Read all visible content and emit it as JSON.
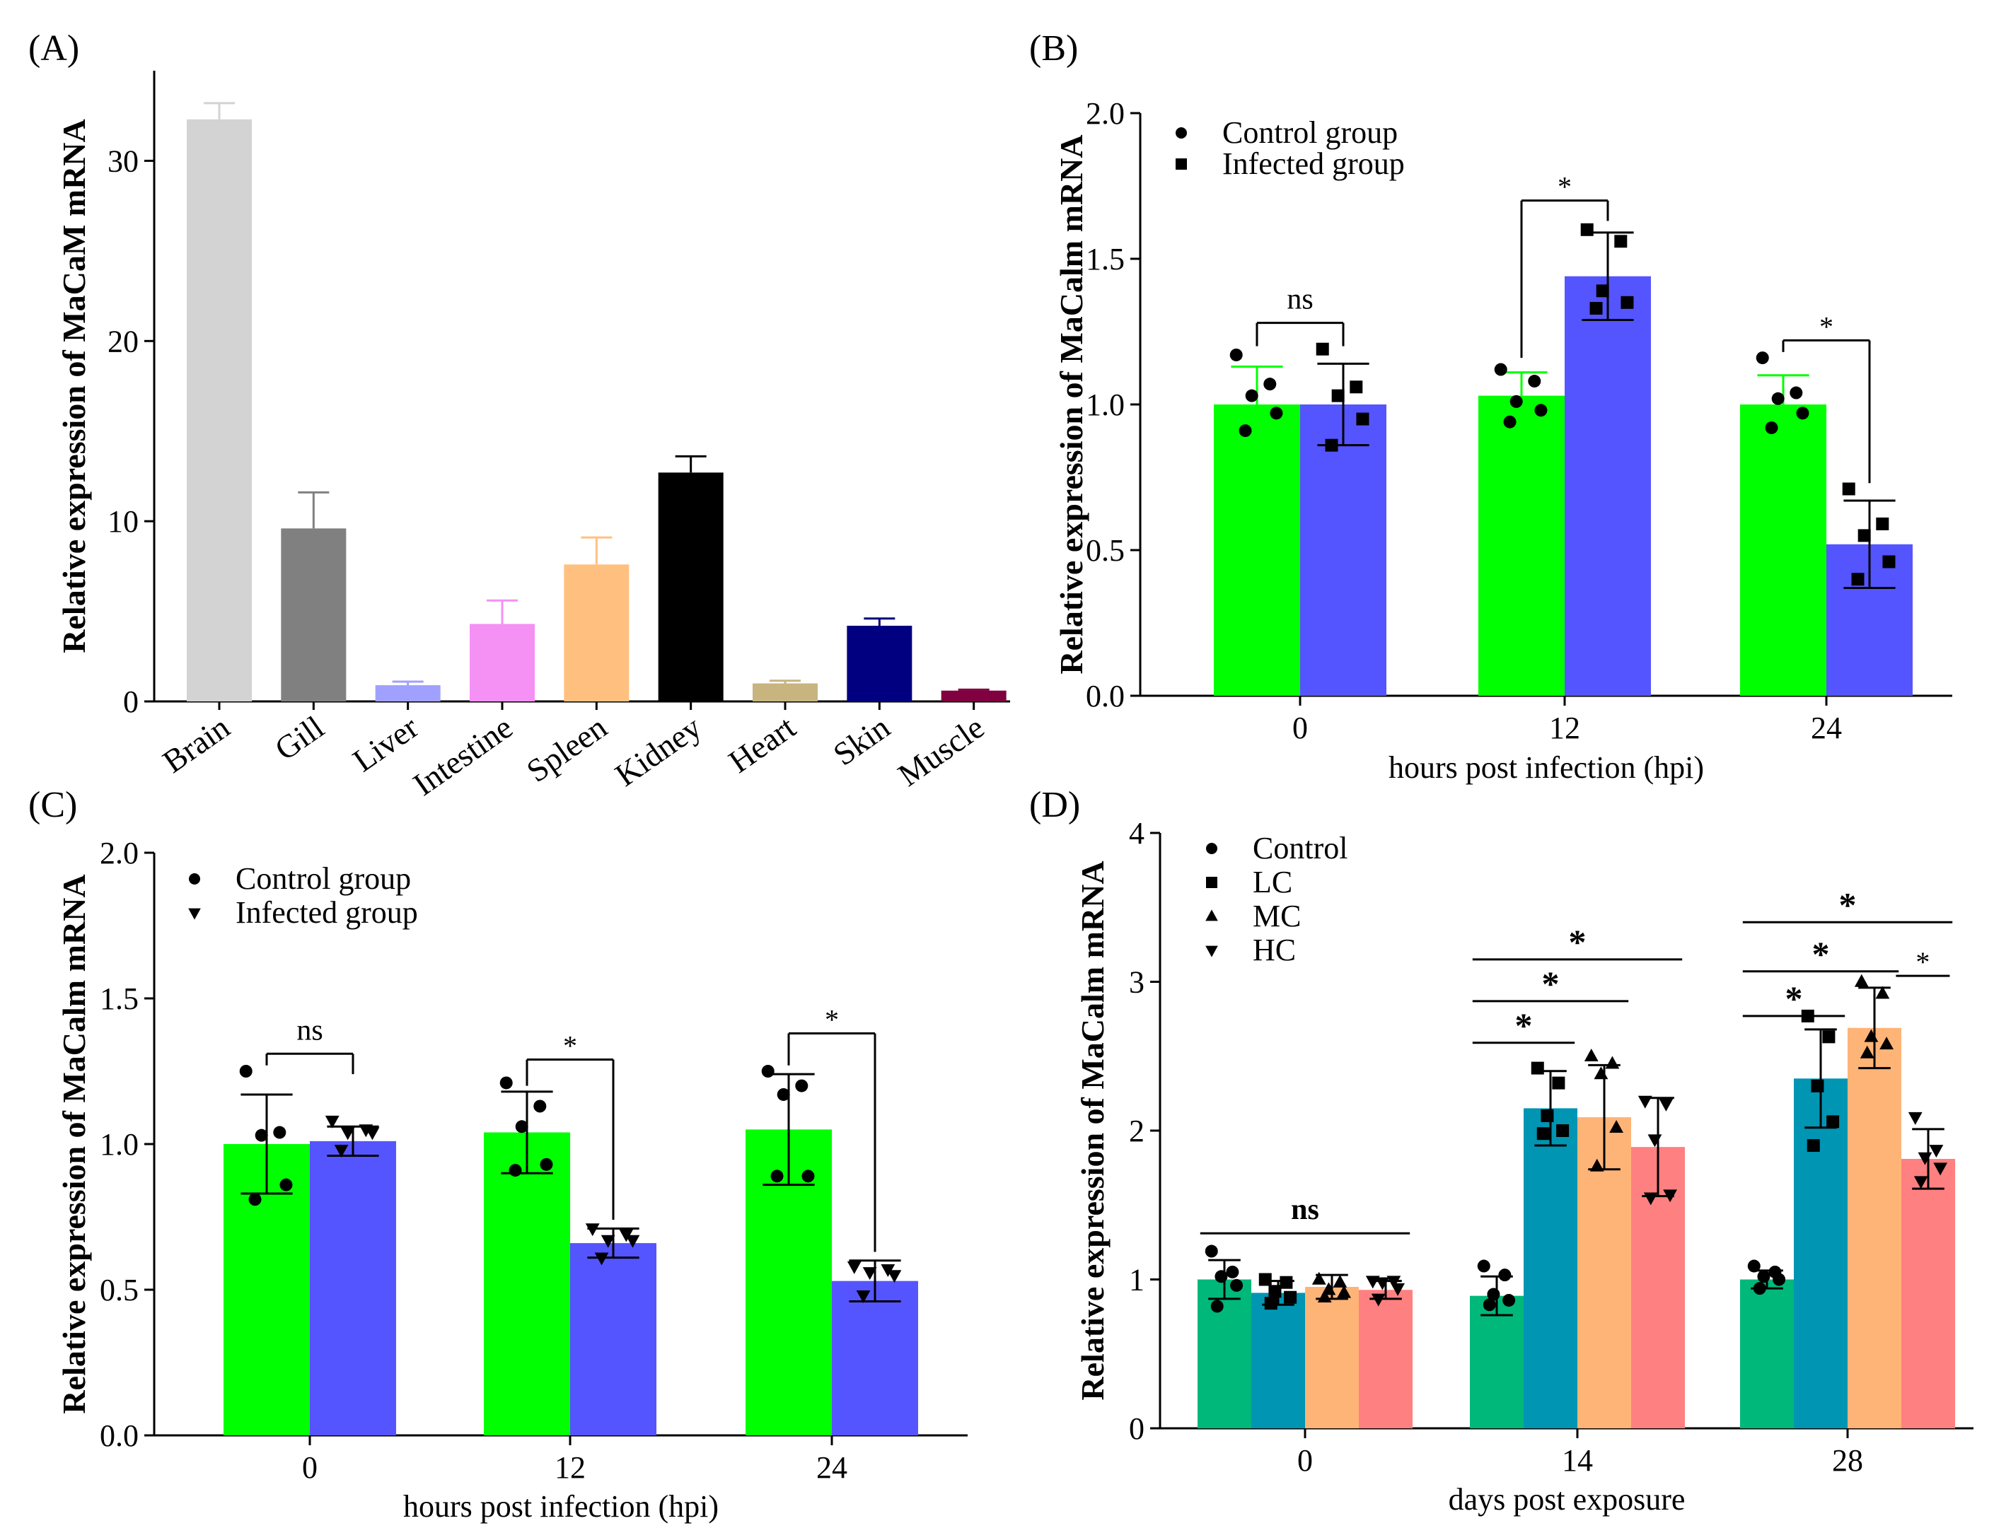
{
  "chart_data": [
    {
      "panel": "(A)",
      "type": "bar",
      "title": "",
      "xlabel": "",
      "ylabel": "Relative expression of MaCaM mRNA",
      "ylim": [
        0,
        35
      ],
      "yticks": [
        "0",
        "10",
        "20",
        "30"
      ],
      "ytick_values": [
        0,
        10,
        20,
        30
      ],
      "categories": [
        "Brain",
        "Gill",
        "Liver",
        "Intestine",
        "Spleen",
        "Kidney",
        "Heart",
        "Skin",
        "Muscle"
      ],
      "values": [
        32.3,
        9.6,
        0.9,
        4.3,
        7.6,
        12.7,
        1.0,
        4.2,
        0.6
      ],
      "errors": [
        0.9,
        2.0,
        0.2,
        1.3,
        1.5,
        0.9,
        0.15,
        0.4,
        0.05
      ],
      "colors": [
        "#d3d3d3",
        "#808080",
        "#a0a0ff",
        "#f590f5",
        "#ffc07f",
        "#000000",
        "#c7b47f",
        "#000080",
        "#800040"
      ]
    },
    {
      "panel": "(B)",
      "type": "bar",
      "title": "",
      "xlabel": "hours post infection (hpi)",
      "ylabel": "Relative expression of MaCalm mRNA",
      "ylim": [
        0,
        2.0
      ],
      "yticks": [
        "0.0",
        "0.5",
        "1.0",
        "1.5",
        "2.0"
      ],
      "ytick_values": [
        0,
        0.5,
        1.0,
        1.5,
        2.0
      ],
      "categories": [
        "0",
        "12",
        "24"
      ],
      "series": [
        {
          "name": "Control group",
          "marker": "circle",
          "color": "#00ff00",
          "errcolor": "#00ff00",
          "values": [
            1.0,
            1.03,
            1.0
          ],
          "errors": [
            0.13,
            0.08,
            0.1
          ],
          "points": [
            [
              1.17,
              1.07,
              1.03,
              0.97,
              0.91
            ],
            [
              1.12,
              1.08,
              1.01,
              0.98,
              0.94
            ],
            [
              1.16,
              1.04,
              1.02,
              0.97,
              0.92
            ]
          ]
        },
        {
          "name": "Infected group",
          "marker": "square",
          "color": "#5555ff",
          "errcolor": "#000000",
          "values": [
            1.0,
            1.44,
            0.52
          ],
          "errors": [
            0.14,
            0.15,
            0.15
          ],
          "points": [
            [
              1.19,
              1.06,
              1.03,
              0.95,
              0.86
            ],
            [
              1.6,
              1.56,
              1.39,
              1.35,
              1.33
            ],
            [
              0.71,
              0.59,
              0.55,
              0.46,
              0.4
            ]
          ]
        }
      ],
      "annotations": [
        {
          "group": 0,
          "label": "ns",
          "from": 0,
          "to": 1,
          "y": 1.28,
          "left_drop": 1.2,
          "right_drop": 1.2
        },
        {
          "group": 1,
          "label": "*",
          "from": 0,
          "to": 1,
          "y": 1.7,
          "left_drop": 1.16,
          "right_drop": 1.63
        },
        {
          "group": 2,
          "label": "*",
          "from": 0,
          "to": 1,
          "y": 1.22,
          "left_drop": 1.18,
          "right_drop": 0.73
        }
      ]
    },
    {
      "panel": "(C)",
      "type": "bar",
      "title": "",
      "xlabel": "hours post infection (hpi)",
      "ylabel": "Relative expression of MaCalm mRNA",
      "ylim": [
        0,
        2.0
      ],
      "yticks": [
        "0.0",
        "0.5",
        "1.0",
        "1.5",
        "2.0"
      ],
      "ytick_values": [
        0,
        0.5,
        1.0,
        1.5,
        2.0
      ],
      "categories": [
        "0",
        "12",
        "24"
      ],
      "series": [
        {
          "name": "Control group",
          "marker": "circle",
          "color": "#00ff00",
          "errcolor": "#000000",
          "values": [
            1.0,
            1.04,
            1.05
          ],
          "errors": [
            0.17,
            0.14,
            0.19
          ],
          "points": [
            [
              1.25,
              1.04,
              1.03,
              0.86,
              0.81
            ],
            [
              1.21,
              1.13,
              1.06,
              0.93,
              0.91
            ],
            [
              1.25,
              1.2,
              1.17,
              0.89,
              0.89
            ]
          ]
        },
        {
          "name": "Infected group",
          "marker": "triangle-down",
          "color": "#5555ff",
          "errcolor": "#000000",
          "values": [
            1.01,
            0.66,
            0.53
          ],
          "errors": [
            0.05,
            0.05,
            0.07
          ],
          "points": [
            [
              1.08,
              1.05,
              1.04,
              1.04,
              0.98
            ],
            [
              0.71,
              0.69,
              0.67,
              0.67,
              0.61
            ],
            [
              0.58,
              0.57,
              0.56,
              0.55,
              0.48
            ]
          ]
        }
      ],
      "annotations": [
        {
          "group": 0,
          "label": "ns",
          "from": 0,
          "to": 1,
          "y": 1.31,
          "left_drop": 1.27,
          "right_drop": 1.24
        },
        {
          "group": 1,
          "label": "*",
          "from": 0,
          "to": 1,
          "y": 1.29,
          "left_drop": 1.2,
          "right_drop": 0.74
        },
        {
          "group": 2,
          "label": "*",
          "from": 0,
          "to": 1,
          "y": 1.38,
          "left_drop": 1.27,
          "right_drop": 0.63
        }
      ]
    },
    {
      "panel": "(D)",
      "type": "bar",
      "title": "",
      "xlabel": "days post exposure",
      "ylabel": "Relative expression of MaCalm mRNA",
      "ylim": [
        0,
        4
      ],
      "yticks": [
        "0",
        "1",
        "2",
        "3",
        "4"
      ],
      "ytick_values": [
        0,
        1,
        2,
        3,
        4
      ],
      "categories": [
        "0",
        "14",
        "28"
      ],
      "series": [
        {
          "name": "Control",
          "marker": "circle",
          "color": "#00b87a",
          "errcolor": "#000000",
          "values": [
            1.0,
            0.89,
            1.0
          ],
          "errors": [
            0.13,
            0.13,
            0.06
          ],
          "points": [
            [
              1.19,
              1.05,
              1.02,
              0.96,
              0.82
            ],
            [
              1.09,
              1.03,
              0.9,
              0.86,
              0.83
            ],
            [
              1.09,
              1.05,
              1.02,
              1.0,
              0.94
            ]
          ]
        },
        {
          "name": "LC",
          "marker": "square",
          "color": "#0095b3",
          "errcolor": "#000000",
          "values": [
            0.91,
            2.15,
            2.35
          ],
          "errors": [
            0.08,
            0.25,
            0.33
          ],
          "points": [
            [
              1.0,
              0.98,
              0.92,
              0.88,
              0.84
            ],
            [
              2.42,
              2.32,
              2.1,
              2.0,
              1.98
            ],
            [
              2.77,
              2.63,
              2.3,
              2.06,
              1.9
            ]
          ]
        },
        {
          "name": "MC",
          "marker": "triangle-up",
          "color": "#ffb477",
          "errcolor": "#000000",
          "values": [
            0.95,
            2.09,
            2.69
          ],
          "errors": [
            0.08,
            0.35,
            0.27
          ],
          "points": [
            [
              1.0,
              0.98,
              0.93,
              0.91,
              0.88
            ],
            [
              2.5,
              2.45,
              2.38,
              2.02,
              1.76
            ],
            [
              3.0,
              2.92,
              2.63,
              2.58,
              2.52
            ]
          ]
        },
        {
          "name": "HC",
          "marker": "triangle-down",
          "color": "#ff8080",
          "errcolor": "#000000",
          "values": [
            0.93,
            1.89,
            1.81
          ],
          "errors": [
            0.06,
            0.33,
            0.2
          ],
          "points": [
            [
              0.99,
              0.99,
              0.98,
              0.94,
              0.87
            ],
            [
              2.2,
              2.18,
              1.94,
              1.57,
              1.55
            ],
            [
              2.09,
              1.87,
              1.82,
              1.75,
              1.66
            ]
          ]
        }
      ],
      "annotations": [
        {
          "group": 0,
          "label": "ns",
          "from": 0,
          "to": 3,
          "y": 1.31
        },
        {
          "group": 1,
          "label": "*",
          "from": 0,
          "to": 1,
          "y": 2.59
        },
        {
          "group": 1,
          "label": "*",
          "from": 0,
          "to": 2,
          "y": 2.87
        },
        {
          "group": 1,
          "label": "*",
          "from": 0,
          "to": 3,
          "y": 3.15
        },
        {
          "group": 2,
          "label": "*",
          "from": 0,
          "to": 1,
          "y": 2.77
        },
        {
          "group": 2,
          "label": "*",
          "from": 0,
          "to": 2,
          "y": 3.07
        },
        {
          "group": 2,
          "label": "*",
          "from": 2,
          "to": 3,
          "y": 3.04,
          "size": "small"
        },
        {
          "group": 2,
          "label": "*",
          "from": 0,
          "to": 3,
          "y": 3.4
        }
      ]
    }
  ]
}
